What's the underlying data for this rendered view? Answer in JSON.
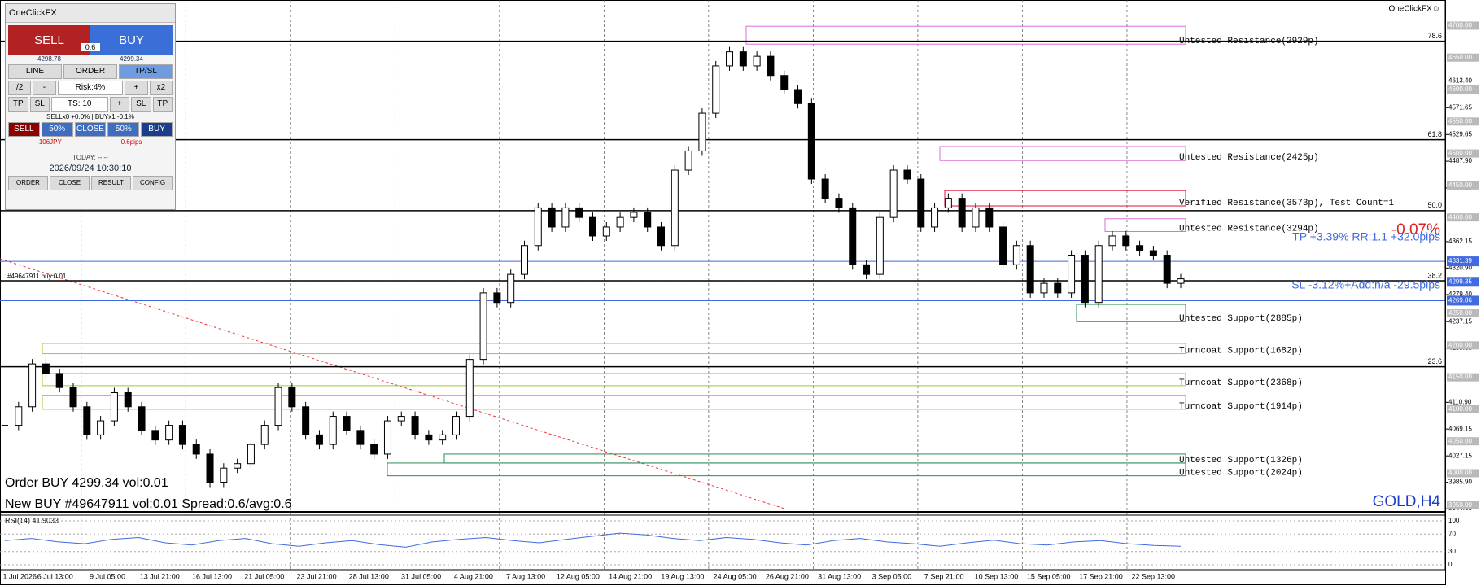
{
  "panel": {
    "title": "OneClickFX",
    "sell": "SELL",
    "buy": "BUY",
    "spread": "0.6",
    "bid": "4298.78",
    "ask": "4299.34",
    "modes": [
      "LINE",
      "ORDER",
      "TP/SL"
    ],
    "row1": [
      "/2",
      "-",
      "Risk:4%",
      "+",
      "x2"
    ],
    "row2": [
      "TP",
      "SL",
      "TS: 10",
      "+",
      "SL",
      "TP"
    ],
    "positions": "SELLx0 +0.0% | BUYx1 -0.1%",
    "row3": [
      "SELL",
      "50%",
      "CLOSE",
      "50%",
      "BUY"
    ],
    "pnl": "-106JPY",
    "pips": "0.6pips",
    "today": "TODAY: -- --",
    "clock": "2026/09/24  10:30:10",
    "tabs": [
      "ORDER",
      "CLOSE",
      "RESULT",
      "CONFIG"
    ]
  },
  "chart_data": {
    "type": "candlestick",
    "symbol": "GOLD,H4",
    "brand": "OneClickFX☺",
    "values": [
      4075,
      4104,
      4171,
      4156,
      4134,
      4104,
      4060,
      4082,
      4126,
      4104,
      4067,
      4052,
      4075,
      4045,
      4030,
      3986,
      4008,
      4015,
      4045,
      4075,
      4134,
      4104,
      4060,
      4045,
      4089,
      4067,
      4045,
      4030,
      4082,
      4089,
      4060,
      4052,
      4060,
      4089,
      4178,
      4282,
      4267,
      4311,
      4356,
      4415,
      4385,
      4415,
      4400,
      4371,
      4385,
      4400,
      4408,
      4385,
      4356,
      4474,
      4504,
      4563,
      4637,
      4659,
      4637,
      4652,
      4622,
      4600,
      4578,
      4460,
      4430,
      4415,
      4326,
      4311,
      4400,
      4474,
      4460,
      4385,
      4415,
      4430,
      4385,
      4415,
      4385,
      4326,
      4356,
      4282,
      4297,
      4282,
      4341,
      4267,
      4356,
      4371,
      4356,
      4348,
      4341,
      4297,
      4304
    ],
    "color": "#000000",
    "xticks": [
      "1 Jul 2026",
      "6 Jul 13:00",
      "9 Jul 05:00",
      "13 Jul 21:00",
      "16 Jul 13:00",
      "21 Jul 05:00",
      "23 Jul 21:00",
      "28 Jul 13:00",
      "31 Jul 05:00",
      "4 Aug 21:00",
      "7 Aug 13:00",
      "12 Aug 05:00",
      "14 Aug 21:00",
      "19 Aug 13:00",
      "24 Aug 05:00",
      "26 Aug 21:00",
      "31 Aug 13:00",
      "3 Sep 05:00",
      "7 Sep 21:00",
      "10 Sep 13:00",
      "15 Sep 05:00",
      "17 Sep 21:00",
      "22 Sep 13:00"
    ],
    "ylim": [
      3944.65,
      4740
    ],
    "yticks": [
      {
        "value": 4613.4,
        "label": "4613.40"
      },
      {
        "value": 4571.65,
        "label": "4571.65"
      },
      {
        "value": 4529.65,
        "label": "4529.65"
      },
      {
        "value": 4487.9,
        "label": "4487.90"
      },
      {
        "value": 4446.15,
        "label": "4446.15"
      },
      {
        "value": 4362.15,
        "label": "4362.15"
      },
      {
        "value": 4320.9,
        "label": "4320.90"
      },
      {
        "value": 4279.4,
        "label": "4279.40"
      },
      {
        "value": 4237.15,
        "label": "4237.15"
      },
      {
        "value": 4195.65,
        "label": "4195.65"
      },
      {
        "value": 4110.9,
        "label": "4110.90"
      },
      {
        "value": 4069.15,
        "label": "4069.15"
      },
      {
        "value": 4027.15,
        "label": "4027.15"
      },
      {
        "value": 3985.9,
        "label": "3985.90"
      },
      {
        "value": 3944.65,
        "label": "3944.65"
      }
    ],
    "round_levels": [
      {
        "value": 4700,
        "label": "4700.00"
      },
      {
        "value": 4650,
        "label": "4650.00"
      },
      {
        "value": 4600,
        "label": "4600.00"
      },
      {
        "value": 4550,
        "label": "4550.00"
      },
      {
        "value": 4500,
        "label": "4500.00"
      },
      {
        "value": 4450,
        "label": "4450.00"
      },
      {
        "value": 4400,
        "label": "4400.00"
      },
      {
        "value": 4250,
        "label": "4250.00"
      },
      {
        "value": 4200,
        "label": "4200.00"
      },
      {
        "value": 4150,
        "label": "4150.00"
      },
      {
        "value": 4100,
        "label": "4100.00"
      },
      {
        "value": 4050,
        "label": "4050.00"
      },
      {
        "value": 4000,
        "label": "4000.00"
      },
      {
        "value": 3950,
        "label": "3950.00"
      }
    ],
    "price_lines": [
      {
        "value": 4331.39,
        "label": "4331.39"
      },
      {
        "value": 4299.35,
        "label": "4299.35"
      },
      {
        "value": 4269.86,
        "label": "4269.86"
      }
    ],
    "price_line_color": "#4169e1",
    "fib_levels": [
      {
        "value": 4675.5,
        "label": "78.6"
      },
      {
        "value": 4521.6,
        "label": "61.8"
      },
      {
        "value": 4410.6,
        "label": "50.0"
      },
      {
        "value": 4301,
        "label": "38.2"
      },
      {
        "value": 4166.5,
        "label": "23.6"
      }
    ],
    "zones": [
      {
        "label": "Untested Resistance(2929p)",
        "top": 4699,
        "bottom": 4671,
        "color": "#da70d6"
      },
      {
        "label": "Untested Resistance(2425p)",
        "top": 4511,
        "bottom": 4489,
        "color": "#da70d6"
      },
      {
        "label": "Verified Resistance(3573p), Test Count=1",
        "top": 4442,
        "bottom": 4418,
        "color": "#dc143c"
      },
      {
        "label": "Untested Resistance(3294p)",
        "top": 4398,
        "bottom": 4378,
        "color": "#da70d6"
      },
      {
        "label": "Untested Support(2885p)",
        "top": 4264,
        "bottom": 4237,
        "color": "#2e8b57"
      },
      {
        "label": "Turncoat Support(1682p)",
        "top": 4203,
        "bottom": 4187,
        "color": "#9acd32"
      },
      {
        "label": "Turncoat Support(2368p)",
        "top": 4156,
        "bottom": 4137,
        "color": "#9acd32"
      },
      {
        "label": "Turncoat Support(1914p)",
        "top": 4122,
        "bottom": 4100,
        "color": "#9acd32"
      },
      {
        "label": "Untested Support(1326p)",
        "top": 4030,
        "bottom": 4016,
        "color": "#2e8b57"
      },
      {
        "label": "Untested Support(2024p)",
        "top": 4016,
        "bottom": 3996,
        "color": "#2e8b57"
      }
    ],
    "pnl_pct": "-0.07%",
    "tp_info": "TP +3.39% RR:1.1 +32.0pips",
    "sl_info": "SL -3.12%+Add:n/a -29.5pips",
    "order_tag": "#49647911 buy 0.01",
    "messages": [
      "Order BUY 4299.34 vol:0.01",
      "New BUY #49647911 vol:0.01 Spread:0.6/avg:0.6"
    ],
    "rsi": {
      "label": "RSI(14) 41.9033",
      "ylim": [
        0,
        100
      ],
      "yticks": [
        100,
        70,
        30,
        0
      ],
      "color": "#4169e1",
      "values": [
        55,
        60,
        52,
        48,
        58,
        62,
        50,
        45,
        55,
        60,
        48,
        42,
        50,
        55,
        46,
        40,
        52,
        58,
        62,
        55,
        50,
        58,
        65,
        72,
        68,
        60,
        55,
        62,
        58,
        50,
        45,
        55,
        60,
        52,
        48,
        42,
        50,
        56,
        48,
        45,
        52,
        55,
        48,
        44,
        42
      ]
    }
  }
}
